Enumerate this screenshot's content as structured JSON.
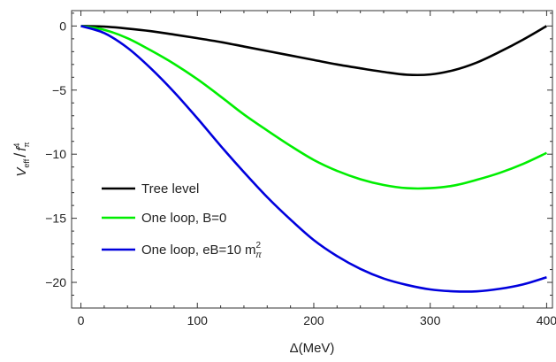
{
  "chart_data": {
    "type": "line",
    "xlabel": "Δ(MeV)",
    "ylabel": "V_eff / f_π^4",
    "xlim": [
      -8,
      405
    ],
    "ylim": [
      -22,
      1.2
    ],
    "xticks": [
      0,
      100,
      200,
      300,
      400
    ],
    "xtick_labels": [
      "0",
      "100",
      "200",
      "300",
      "400"
    ],
    "yticks": [
      0,
      -5,
      -10,
      -15,
      -20
    ],
    "ytick_labels": [
      "0",
      "−5",
      "−10",
      "−15",
      "−20"
    ],
    "grid": false,
    "legend_position": "center-left",
    "series": [
      {
        "name": "Tree level",
        "color": "#000000",
        "x": [
          0,
          20,
          40,
          60,
          80,
          100,
          120,
          140,
          160,
          180,
          200,
          220,
          240,
          260,
          280,
          300,
          320,
          340,
          360,
          380,
          400
        ],
        "y": [
          0,
          -0.05,
          -0.2,
          -0.4,
          -0.67,
          -0.95,
          -1.25,
          -1.6,
          -1.95,
          -2.3,
          -2.65,
          -3.0,
          -3.3,
          -3.58,
          -3.8,
          -3.78,
          -3.45,
          -2.85,
          -2.0,
          -1.05,
          0
        ]
      },
      {
        "name": "One loop, B=0",
        "color": "#00ee00",
        "x": [
          0,
          20,
          40,
          60,
          80,
          100,
          120,
          140,
          160,
          180,
          200,
          220,
          240,
          260,
          280,
          300,
          320,
          340,
          360,
          380,
          400
        ],
        "y": [
          0,
          -0.3,
          -0.95,
          -1.9,
          -2.95,
          -4.15,
          -5.5,
          -6.9,
          -8.15,
          -9.35,
          -10.45,
          -11.3,
          -11.95,
          -12.4,
          -12.65,
          -12.65,
          -12.45,
          -12.0,
          -11.45,
          -10.75,
          -9.9
        ]
      },
      {
        "name": "One loop, eB=10 m_π^2",
        "color": "#0000dd",
        "x": [
          0,
          20,
          40,
          60,
          80,
          100,
          120,
          140,
          160,
          180,
          200,
          220,
          240,
          260,
          280,
          300,
          320,
          340,
          360,
          380,
          400
        ],
        "y": [
          0,
          -0.55,
          -1.7,
          -3.3,
          -5.15,
          -7.2,
          -9.35,
          -11.4,
          -13.35,
          -15.1,
          -16.7,
          -17.95,
          -18.95,
          -19.7,
          -20.2,
          -20.55,
          -20.7,
          -20.7,
          -20.5,
          -20.15,
          -19.6
        ]
      }
    ],
    "legend": {
      "items": [
        {
          "label": "Tree level",
          "color": "#000000"
        },
        {
          "label": "One loop, B=0",
          "color": "#00ee00"
        },
        {
          "label": "One loop, eB=10",
          "label_tail": "m",
          "sup": "2",
          "sub": "π",
          "color": "#0000dd"
        }
      ]
    },
    "ylabel_parts": {
      "main": "V",
      "main_sub": "eff",
      "slash": "/",
      "denom": "f",
      "denom_sup": "4",
      "denom_sub": "π"
    }
  }
}
